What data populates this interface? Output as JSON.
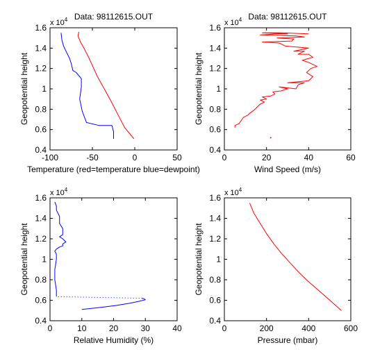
{
  "chart_data": [
    {
      "type": "line",
      "title": "Data: 98112615.OUT",
      "xlabel": "Temperature (red=temperature blue=dewpoint)",
      "ylabel": "Geopotential height",
      "y_multiplier": "x 10",
      "y_exponent": "4",
      "xlim": [
        -100,
        50
      ],
      "ylim": [
        0.4,
        1.6
      ],
      "xticks": [
        -100,
        -50,
        0,
        50
      ],
      "yticks": [
        0.4,
        0.6,
        0.8,
        1.0,
        1.2,
        1.4,
        1.6
      ],
      "xtick_labels": [
        "-100",
        "-50",
        "0",
        "50"
      ],
      "ytick_labels": [
        "0.4",
        "0.6",
        "0.8",
        "1",
        "1.2",
        "1.4",
        "1.6"
      ],
      "series": [
        {
          "color": "#ff0000",
          "style": "solid",
          "x": [
            -1,
            -5,
            -12,
            -20,
            -28,
            -36,
            -44,
            -50,
            -55,
            -60,
            -64,
            -67,
            -66
          ],
          "y": [
            0.51,
            0.55,
            0.62,
            0.75,
            0.88,
            1.0,
            1.12,
            1.23,
            1.32,
            1.4,
            1.46,
            1.52,
            1.56
          ]
        },
        {
          "color": "#0000ff",
          "style": "solid",
          "x": [
            -25,
            -25,
            -27,
            -42,
            -57,
            -62,
            -65,
            -63,
            -63,
            -69,
            -73,
            -75,
            -77,
            -80,
            -84,
            -86,
            -87
          ],
          "y": [
            0.51,
            0.58,
            0.64,
            0.64,
            0.67,
            0.78,
            0.9,
            1.02,
            1.1,
            1.16,
            1.18,
            1.25,
            1.3,
            1.35,
            1.42,
            1.48,
            1.55
          ]
        }
      ]
    },
    {
      "type": "line",
      "title": "Data: 98112615.OUT",
      "xlabel": "Wind Speed (m/s)",
      "ylabel": "Geopotential height",
      "y_multiplier": "x 10",
      "y_exponent": "4",
      "xlim": [
        0,
        60
      ],
      "ylim": [
        0.4,
        1.6
      ],
      "xticks": [
        0,
        20,
        40,
        60
      ],
      "yticks": [
        0.4,
        0.6,
        0.8,
        1.0,
        1.2,
        1.4,
        1.6
      ],
      "xtick_labels": [
        "0",
        "20",
        "40",
        "60"
      ],
      "ytick_labels": [
        "0.4",
        "0.6",
        "0.8",
        "1",
        "1.2",
        "1.4",
        "1.6"
      ],
      "series": [
        {
          "color": "#ff0000",
          "style": "solid",
          "x": [
            5,
            5,
            7,
            8,
            9,
            11,
            12,
            14,
            15,
            16,
            17,
            19,
            17,
            20,
            18,
            22,
            24,
            23,
            27,
            30,
            26,
            34,
            35,
            38,
            30,
            40,
            42,
            39,
            41,
            44,
            40,
            37,
            42,
            40,
            35,
            38,
            33,
            40,
            29,
            26,
            18,
            32,
            33,
            25,
            38,
            34,
            17,
            26,
            30,
            18,
            27,
            40
          ],
          "y": [
            0.62,
            0.64,
            0.66,
            0.69,
            0.72,
            0.74,
            0.76,
            0.79,
            0.81,
            0.83,
            0.85,
            0.87,
            0.89,
            0.9,
            0.92,
            0.93,
            0.95,
            0.97,
            0.98,
            1.0,
            1.02,
            1.0,
            1.04,
            1.06,
            1.06,
            1.08,
            1.12,
            1.16,
            1.2,
            1.22,
            1.26,
            1.28,
            1.31,
            1.34,
            1.34,
            1.37,
            1.37,
            1.4,
            1.42,
            1.45,
            1.46,
            1.47,
            1.49,
            1.5,
            1.51,
            1.52,
            1.53,
            1.54,
            1.54,
            1.55,
            1.55,
            1.54
          ]
        },
        {
          "color": "#ff0000",
          "style": "point",
          "x": [
            22
          ],
          "y": [
            0.52
          ]
        }
      ]
    },
    {
      "type": "line",
      "title": "",
      "xlabel": "Relative Humidity (%)",
      "ylabel": "Geopotential height",
      "y_multiplier": "x 10",
      "y_exponent": "4",
      "xlim": [
        0,
        40
      ],
      "ylim": [
        0.4,
        1.6
      ],
      "xticks": [
        0,
        10,
        20,
        30,
        40
      ],
      "yticks": [
        0.4,
        0.6,
        0.8,
        1.0,
        1.2,
        1.4,
        1.6
      ],
      "xtick_labels": [
        "0",
        "10",
        "20",
        "30",
        "40"
      ],
      "ytick_labels": [
        "0.4",
        "0.6",
        "0.8",
        "1",
        "1.2",
        "1.4",
        "1.6"
      ],
      "series": [
        {
          "color": "#0000ff",
          "style": "solid",
          "x": [
            10,
            16,
            21,
            25,
            28,
            30,
            29.5,
            29
          ],
          "y": [
            0.51,
            0.53,
            0.55,
            0.57,
            0.59,
            0.605,
            0.615,
            0.62
          ]
        },
        {
          "color": "#0000ff",
          "style": "dotted",
          "x": [
            29,
            2
          ],
          "y": [
            0.62,
            0.635
          ]
        },
        {
          "color": "#0000ff",
          "style": "solid",
          "x": [
            2,
            2,
            1.5,
            1.5,
            2,
            2,
            1.5,
            2,
            3,
            4,
            4,
            5,
            4,
            3,
            4,
            4,
            3,
            3,
            2,
            2,
            1.5
          ],
          "y": [
            0.635,
            0.7,
            0.8,
            0.9,
            1.0,
            1.05,
            1.08,
            1.1,
            1.12,
            1.13,
            1.15,
            1.17,
            1.2,
            1.22,
            1.24,
            1.3,
            1.35,
            1.42,
            1.48,
            1.52,
            1.56
          ]
        }
      ]
    },
    {
      "type": "line",
      "title": "",
      "xlabel": "Pressure (mbar)",
      "ylabel": "Geopotential height",
      "y_multiplier": "x 10",
      "y_exponent": "4",
      "xlim": [
        0,
        600
      ],
      "ylim": [
        0.4,
        1.6
      ],
      "xticks": [
        0,
        200,
        400,
        600
      ],
      "yticks": [
        0.4,
        0.6,
        0.8,
        1.0,
        1.2,
        1.4,
        1.6
      ],
      "xtick_labels": [
        "0",
        "200",
        "400",
        "600"
      ],
      "ytick_labels": [
        "0.4",
        "0.6",
        "0.8",
        "1",
        "1.2",
        "1.4",
        "1.6"
      ],
      "series": [
        {
          "color": "#ff0000",
          "style": "solid",
          "x": [
            120,
            140,
            170,
            200,
            235,
            270,
            310,
            350,
            395,
            445,
            495,
            555
          ],
          "y": [
            1.55,
            1.45,
            1.35,
            1.25,
            1.15,
            1.06,
            0.97,
            0.88,
            0.79,
            0.7,
            0.61,
            0.5
          ]
        }
      ]
    }
  ]
}
